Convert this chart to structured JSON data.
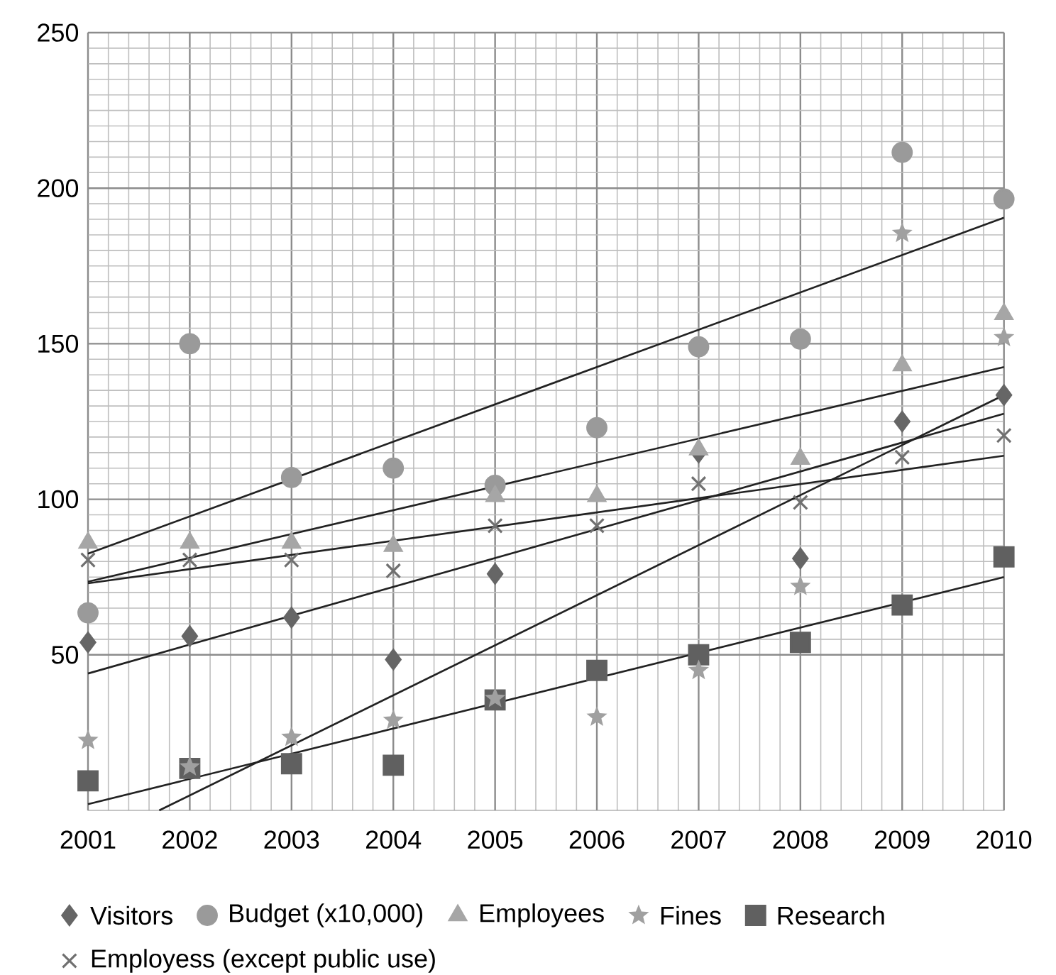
{
  "chart_data": {
    "type": "scatter",
    "x": [
      2001,
      2002,
      2003,
      2004,
      2005,
      2006,
      2007,
      2008,
      2009,
      2010
    ],
    "xlim": [
      2001,
      2010
    ],
    "xticks": [
      2001,
      2002,
      2003,
      2004,
      2005,
      2006,
      2007,
      2008,
      2009,
      2010
    ],
    "ylim": [
      0,
      250
    ],
    "yticks": [
      50,
      100,
      150,
      200,
      250
    ],
    "grid": true,
    "legend": "bottom",
    "series": [
      {
        "name": "Visitors",
        "color": "#666666",
        "marker": "diamond",
        "values": [
          54,
          56,
          62,
          48.5,
          76,
          null,
          115,
          81,
          125,
          133.5
        ]
      },
      {
        "name": "Budget (x10,000)",
        "color": "#9a9a9a",
        "marker": "circle",
        "values": [
          63.5,
          150,
          107,
          110,
          104.5,
          123,
          149,
          151.5,
          211.5,
          196.5
        ]
      },
      {
        "name": "Employees",
        "color": "#a6a6a6",
        "marker": "triangle",
        "values": [
          86,
          86,
          86,
          85,
          101,
          101,
          116,
          113,
          143,
          159.5
        ]
      },
      {
        "name": "Fines",
        "color": "#a0a0a0",
        "marker": "star",
        "values": [
          22.5,
          14,
          23.5,
          29,
          36,
          30,
          45,
          72,
          185.5,
          152
        ]
      },
      {
        "name": "Research",
        "color": "#606060",
        "marker": "square",
        "values": [
          9.5,
          13.5,
          15,
          14.5,
          35.5,
          45,
          50,
          54,
          66,
          81.5
        ]
      },
      {
        "name": "Employess (except public use)",
        "color": "#707070",
        "marker": "cross",
        "values": [
          80.5,
          80.5,
          80.5,
          77,
          91.5,
          91.5,
          105,
          99,
          113.5,
          120.5
        ]
      },
      {
        "type": "line",
        "color": "#222222",
        "x": [
          2001,
          2010
        ],
        "values": [
          44,
          127.5
        ]
      },
      {
        "type": "line",
        "color": "#222222",
        "x": [
          2001,
          2010
        ],
        "values": [
          82.5,
          190.5
        ]
      },
      {
        "type": "line",
        "color": "#222222",
        "x": [
          2001,
          2010
        ],
        "values": [
          73.5,
          142.5
        ]
      },
      {
        "type": "line",
        "color": "#222222",
        "x": [
          2001.7,
          2010
        ],
        "values": [
          0,
          133.5
        ]
      },
      {
        "type": "line",
        "color": "#222222",
        "x": [
          2001,
          2010
        ],
        "values": [
          2,
          75
        ]
      },
      {
        "type": "line",
        "color": "#222222",
        "x": [
          2001,
          2010
        ],
        "values": [
          73,
          114
        ]
      }
    ]
  }
}
